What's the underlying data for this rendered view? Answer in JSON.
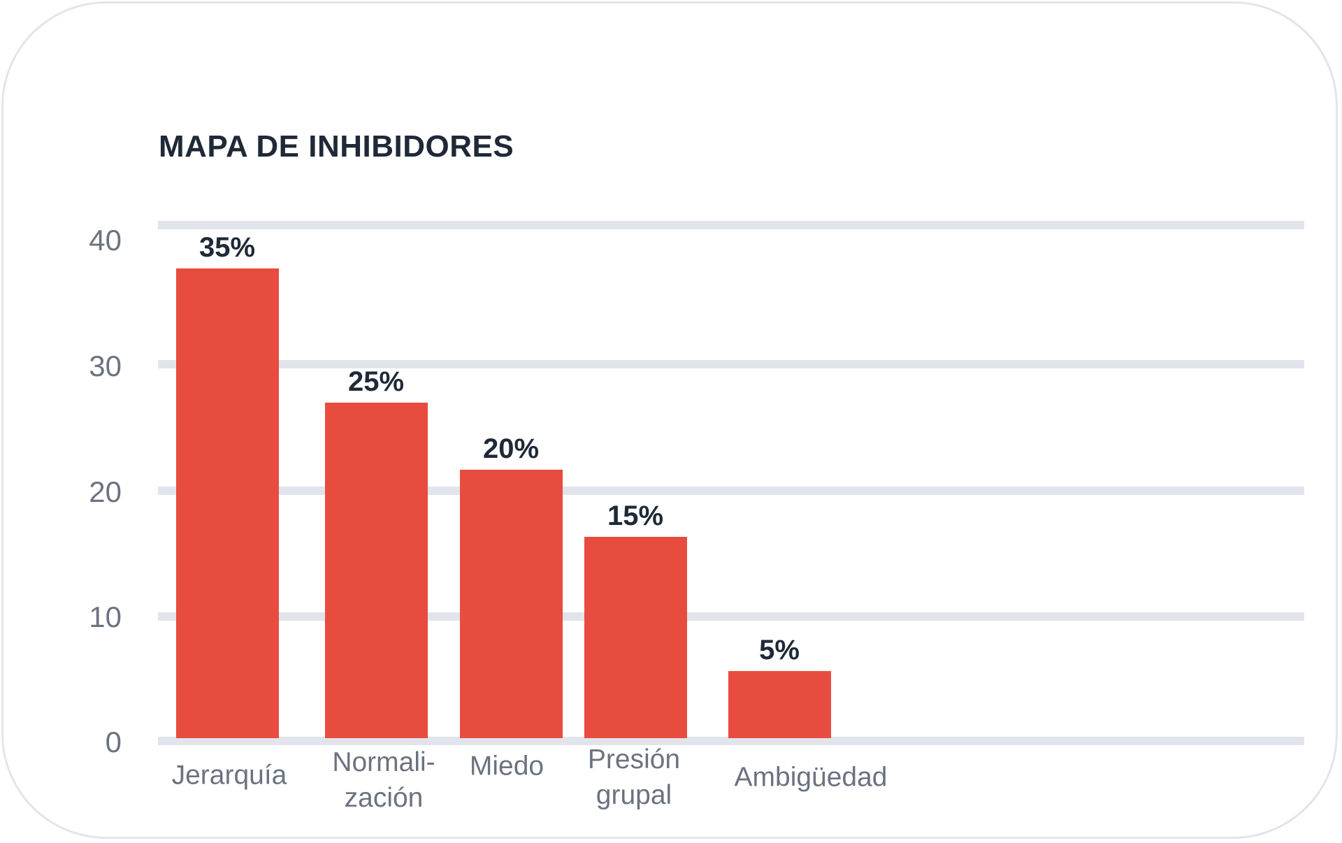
{
  "chart_data": {
    "type": "bar",
    "title": "MAPA DE INHIBIDORES",
    "categories": [
      "Jerarquía",
      "Normali-\nzación",
      "Miedo",
      "Presión\ngrupal",
      "Ambigüedad"
    ],
    "values": [
      35,
      25,
      20,
      15,
      5
    ],
    "data_labels": [
      "35%",
      "25%",
      "20%",
      "15%",
      "5%"
    ],
    "yticks": [
      "0",
      "10",
      "20",
      "30",
      "40"
    ],
    "ylim": [
      0,
      40
    ],
    "xlabel": "",
    "ylabel": "",
    "grid": true,
    "bar_color": "#e84c3f"
  }
}
